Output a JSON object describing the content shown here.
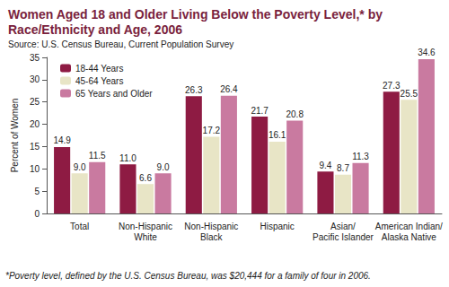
{
  "chart_data": {
    "type": "bar",
    "title": "Women Aged 18 and Older Living Below the Poverty Level,* by Race/Ethnicity and Age, 2006",
    "subtitle": "Source: U.S. Census Bureau, Current Population Survey",
    "ylabel": "Percent of Women",
    "annotations": [
      "*Poverty level, defined by the U.S. Census Bureau, was $20,444 for a family of four in 2006."
    ],
    "categories": [
      "Total",
      "Non-Hispanic White",
      "Non-Hispanic Black",
      "Hispanic",
      "Asian/Pacific Islander",
      "American Indian/Alaska Native"
    ],
    "series": [
      {
        "name": "18-44 Years",
        "color": "#8e1b43",
        "values": [
          14.9,
          11.0,
          26.3,
          21.7,
          9.4,
          27.3
        ],
        "value_labels": [
          "14.9",
          "11.0",
          "26.3",
          "21.7",
          "9.4",
          "27.3"
        ]
      },
      {
        "name": "45-64 Years",
        "color": "#e8e5c6",
        "values": [
          9.0,
          6.6,
          17.2,
          16.1,
          8.7,
          25.5
        ],
        "value_labels": [
          "9.0",
          "6.6",
          "17.2",
          "16.1",
          "8.7",
          "25.5"
        ]
      },
      {
        "name": "65 Years and Older",
        "color": "#c97aa0",
        "values": [
          11.5,
          9.0,
          26.4,
          20.8,
          11.3,
          34.6
        ],
        "value_labels": [
          "11.5",
          "9.0",
          "26.4",
          "20.8",
          "11.3",
          "34.6"
        ]
      }
    ],
    "ylim": [
      0,
      35
    ],
    "yticks": [
      0,
      5,
      10,
      15,
      20,
      25,
      30,
      35
    ],
    "grid": false,
    "legend": "upper left",
    "data_labels": true
  }
}
